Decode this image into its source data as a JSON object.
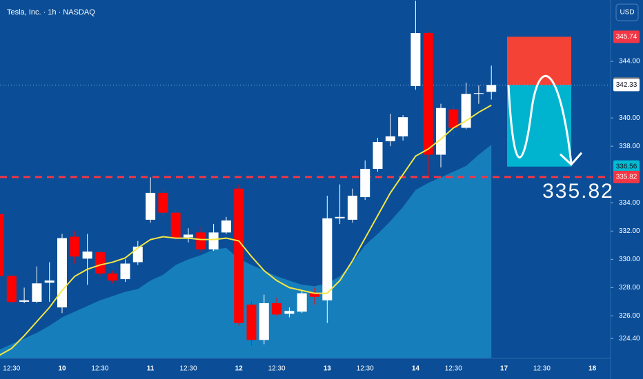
{
  "chart_data": {
    "type": "candlestick",
    "title": "Tesla, Inc. · 1h · NASDAQ",
    "currency": "USD",
    "categories": [
      null,
      "12:30",
      null,
      null,
      null,
      "10",
      null,
      null,
      "12:30",
      null,
      null,
      null,
      "11",
      null,
      null,
      "12:30",
      null,
      null,
      null,
      "12",
      null,
      null,
      "12:30",
      null,
      null,
      null,
      "13",
      null,
      null,
      "12:30",
      null,
      null,
      null,
      "14",
      null,
      null,
      "12:30",
      null,
      null,
      null,
      "17",
      null,
      null,
      "12:30",
      null,
      null,
      null,
      "18"
    ],
    "open": [
      333.2,
      328.83,
      327.0,
      327.0,
      328.35,
      326.6,
      331.6,
      330.05,
      330.5,
      329.0,
      328.6,
      329.8,
      332.8,
      334.7,
      333.3,
      331.55,
      331.9,
      330.7,
      331.9,
      335.0,
      326.8,
      324.3,
      326.9,
      326.15,
      326.3,
      327.6,
      327.1,
      332.9,
      332.8,
      334.4,
      336.4,
      338.35,
      338.7,
      342.25,
      346.0,
      337.4,
      340.6,
      339.3,
      341.7,
      341.85,
      null,
      null,
      null,
      null,
      null,
      null,
      null,
      null
    ],
    "high": [
      333.5,
      329.0,
      328.0,
      329.5,
      329.8,
      331.8,
      332.0,
      331.8,
      330.6,
      329.2,
      330.0,
      331.3,
      335.8,
      335.0,
      333.5,
      332.2,
      332.3,
      332.5,
      333.0,
      335.3,
      327.0,
      327.5,
      327.3,
      326.6,
      327.8,
      328.0,
      334.5,
      335.3,
      335.0,
      337.0,
      338.6,
      340.3,
      340.2,
      348.3,
      346.1,
      341.0,
      340.9,
      342.5,
      342.3,
      343.7,
      null,
      null,
      null,
      null,
      null,
      null,
      null,
      null
    ],
    "low": [
      328.5,
      326.8,
      326.9,
      326.9,
      327.0,
      326.2,
      329.7,
      328.2,
      328.8,
      328.3,
      328.4,
      329.6,
      332.6,
      333.0,
      331.3,
      331.2,
      330.5,
      330.6,
      331.8,
      325.3,
      323.9,
      324.0,
      326.0,
      325.9,
      326.2,
      326.8,
      325.5,
      332.5,
      332.6,
      334.2,
      336.2,
      338.0,
      338.4,
      342.0,
      335.8,
      336.5,
      338.7,
      339.2,
      341.0,
      341.3,
      null,
      null,
      null,
      null,
      null,
      null,
      null,
      null
    ],
    "close": [
      328.83,
      326.98,
      327.1,
      328.3,
      328.5,
      331.5,
      330.2,
      330.55,
      329.0,
      328.5,
      329.7,
      330.9,
      334.7,
      333.3,
      331.5,
      331.75,
      330.7,
      331.9,
      332.75,
      325.5,
      324.3,
      326.9,
      326.1,
      326.35,
      327.6,
      327.35,
      332.9,
      333.0,
      334.5,
      336.4,
      338.3,
      338.7,
      340.05,
      346.0,
      337.4,
      340.7,
      339.3,
      341.7,
      341.75,
      342.33,
      null,
      null,
      null,
      null,
      null,
      null,
      null,
      null
    ],
    "up_color": "#ffffff",
    "down_color": "#ff0000",
    "ma_line": {
      "color": "#f5e642",
      "values": [
        323.2,
        323.7,
        324.6,
        325.6,
        326.6,
        327.8,
        328.8,
        329.3,
        329.6,
        329.8,
        330.1,
        330.8,
        331.4,
        331.6,
        331.5,
        331.5,
        331.4,
        331.4,
        331.5,
        331.3,
        330.2,
        329.2,
        328.5,
        328.0,
        327.8,
        327.6,
        327.6,
        328.5,
        329.9,
        331.5,
        333.1,
        334.7,
        336.0,
        337.3,
        337.8,
        338.5,
        339.3,
        339.8,
        340.4,
        340.9,
        null,
        null,
        null,
        null,
        null,
        null,
        null,
        null
      ]
    },
    "ma_area": {
      "color": "#1a87c2",
      "values": [
        323.6,
        324.0,
        324.4,
        324.8,
        325.3,
        325.9,
        326.3,
        326.7,
        327.1,
        327.4,
        327.7,
        327.9,
        328.5,
        328.9,
        329.6,
        330.0,
        330.3,
        330.7,
        330.8,
        330.05,
        329.6,
        329.2,
        328.8,
        328.5,
        328.2,
        328.1,
        328.3,
        328.8,
        329.8,
        331.0,
        331.8,
        332.7,
        333.7,
        334.9,
        335.4,
        335.8,
        336.2,
        336.6,
        337.4,
        338.1,
        null,
        null,
        null,
        null,
        null,
        null,
        null,
        null
      ]
    },
    "ylim": [
      323,
      348.34
    ],
    "yticks": [
      {
        "value": 324.4,
        "label": "324.40"
      },
      {
        "value": 326,
        "label": "326.00"
      },
      {
        "value": 328,
        "label": "328.00"
      },
      {
        "value": 330,
        "label": "330.00"
      },
      {
        "value": 332,
        "label": "332.00"
      },
      {
        "value": 334,
        "label": "334.00"
      },
      {
        "value": 338,
        "label": "338.00"
      },
      {
        "value": 340,
        "label": "340.00"
      },
      {
        "value": 344,
        "label": "344.00"
      }
    ],
    "price_levels": [
      {
        "value": 345.74,
        "color": "#f23645",
        "text_color": "#ffffff"
      },
      {
        "value": 342.43,
        "color": "#787b86",
        "text_color": "#ffffff"
      },
      {
        "value": 342.33,
        "color": "#ffffff",
        "text_color": "#131722"
      },
      {
        "value": 336.56,
        "color": "#00bcd4",
        "text_color": "#131722"
      },
      {
        "value": 335.82,
        "color": "#f23645",
        "text_color": "#ffffff"
      }
    ],
    "level_annotation": 335.82
  }
}
